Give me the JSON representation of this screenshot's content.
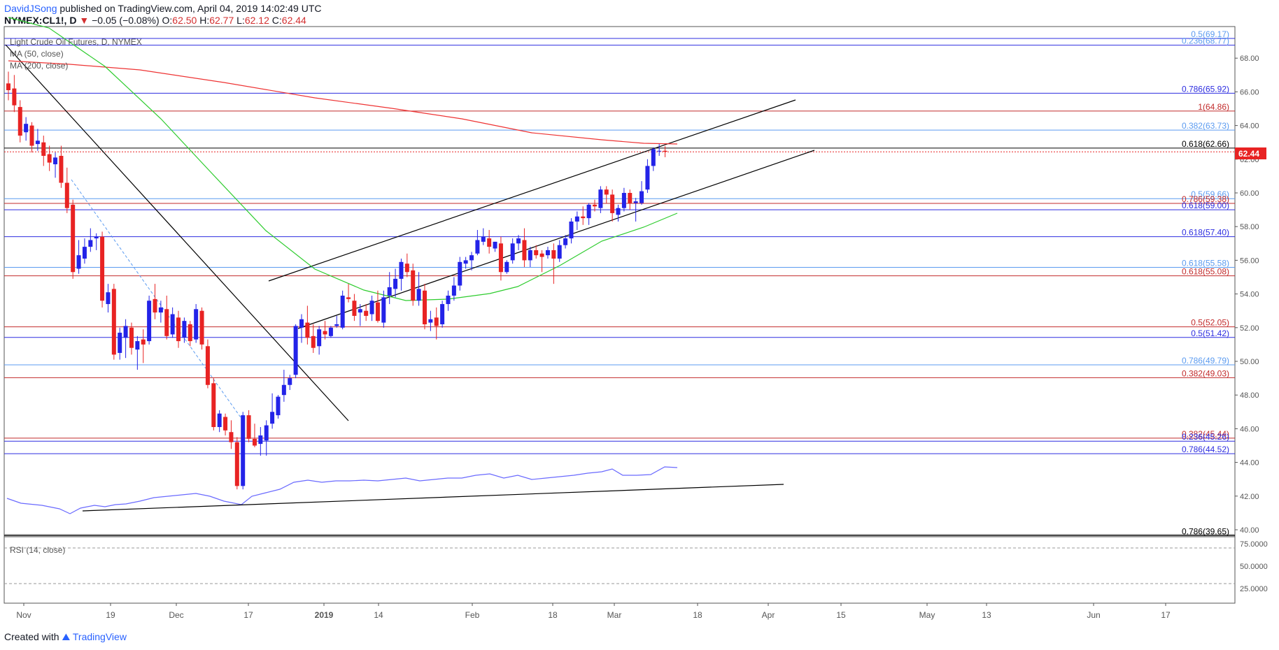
{
  "header": {
    "author": "DavidJSong",
    "published": "published on TradingView.com, April 04, 2019 14:02:49 UTC",
    "symbol": "NYMEX:CL1!, D",
    "change_arrow": "▼",
    "change": "−0.05 (−0.08%)",
    "ohlc": {
      "o_label": "O:",
      "o": "62.50",
      "h_label": "H:",
      "h": "62.77",
      "l_label": "L:",
      "l": "62.12",
      "c_label": "C:",
      "c": "62.44"
    }
  },
  "legend": {
    "title": "Light Crude Oil Futures, D, NYMEX",
    "ma50": "MA (50, close)",
    "ma200": "MA (200, close)",
    "rsi": "RSI (14, close)"
  },
  "price_badge": "62.44",
  "footer": {
    "created": "Created with",
    "brand": "TradingView"
  },
  "colors": {
    "up": "#2323e8",
    "down": "#e82323",
    "ma50": "#2ecc2e",
    "ma200": "#ee3333",
    "fib_blue": "#2d2de0",
    "fib_light": "#5b9bf0",
    "fib_red": "#c22b2b",
    "rsi": "#6a6aff",
    "trend": "#000000"
  },
  "chart_data": {
    "type": "candlestick",
    "price_axis": {
      "min": 39,
      "max": 69.5,
      "ticks": [
        "40.00",
        "42.00",
        "44.00",
        "46.00",
        "48.00",
        "50.00",
        "52.00",
        "54.00",
        "56.00",
        "58.00",
        "60.00",
        "62.00",
        "64.00",
        "66.00",
        "68.00"
      ]
    },
    "time_axis": {
      "labels": [
        "Nov",
        "19",
        "Dec",
        "17",
        "2019",
        "14",
        "Feb",
        "18",
        "Mar",
        "18",
        "Apr",
        "15",
        "May",
        "13",
        "Jun",
        "17"
      ]
    },
    "fib_levels": [
      {
        "label": "0.5(69.17)",
        "value": 69.17,
        "color": "fib_blue",
        "label_color": "fib_light"
      },
      {
        "label": "0.236(68.77)",
        "value": 68.77,
        "color": "fib_blue",
        "label_color": "fib_light"
      },
      {
        "label": "0.786(65.92)",
        "value": 65.92,
        "color": "fib_blue",
        "label_color": "fib_blue"
      },
      {
        "label": "1(64.86)",
        "value": 64.86,
        "color": "fib_red",
        "label_color": "fib_red"
      },
      {
        "label": "0.382(63.73)",
        "value": 63.73,
        "color": "fib_light",
        "label_color": "fib_light"
      },
      {
        "label": "0.618(62.66)",
        "value": 62.66,
        "color": "trend",
        "label_color": "trend"
      },
      {
        "label": "0.5(59.66)",
        "value": 59.66,
        "color": "fib_light",
        "label_color": "fib_light"
      },
      {
        "label": "0.786(59.38)",
        "value": 59.38,
        "color": "fib_red",
        "label_color": "fib_red"
      },
      {
        "label": "0.618(59.00)",
        "value": 59.0,
        "color": "fib_blue",
        "label_color": "fib_blue"
      },
      {
        "label": "0.618(57.40)",
        "value": 57.4,
        "color": "fib_blue",
        "label_color": "fib_blue"
      },
      {
        "label": "0.618(55.58)",
        "value": 55.58,
        "color": "fib_light",
        "label_color": "fib_light"
      },
      {
        "label": "0.618(55.08)",
        "value": 55.08,
        "color": "fib_red",
        "label_color": "fib_red"
      },
      {
        "label": "0.5(52.05)",
        "value": 52.05,
        "color": "fib_red",
        "label_color": "fib_red"
      },
      {
        "label": "0.5(51.42)",
        "value": 51.42,
        "color": "fib_blue",
        "label_color": "fib_blue"
      },
      {
        "label": "0.786(49.79)",
        "value": 49.79,
        "color": "fib_light",
        "label_color": "fib_light"
      },
      {
        "label": "0.382(49.03)",
        "value": 49.03,
        "color": "fib_red",
        "label_color": "fib_red"
      },
      {
        "label": "0.382(45.44)",
        "value": 45.44,
        "color": "fib_red",
        "label_color": "fib_red"
      },
      {
        "label": "0.236(45.26)",
        "value": 45.26,
        "color": "fib_blue",
        "label_color": "fib_blue"
      },
      {
        "label": "0.786(44.52)",
        "value": 44.52,
        "color": "fib_blue",
        "label_color": "fib_blue"
      },
      {
        "label": "0.786(39.65)",
        "value": 39.65,
        "color": "trend",
        "label_color": "trend"
      }
    ],
    "last_price": 62.44,
    "candles": [
      [
        66.5,
        67.2,
        65.5,
        66.1
      ],
      [
        66.2,
        67.0,
        64.8,
        65.2
      ],
      [
        65.1,
        65.5,
        63.0,
        63.4
      ],
      [
        63.6,
        64.5,
        63.1,
        64.1
      ],
      [
        64.0,
        64.2,
        62.4,
        62.8
      ],
      [
        62.9,
        63.8,
        62.5,
        63.1
      ],
      [
        63.0,
        63.4,
        61.6,
        62.2
      ],
      [
        62.3,
        62.8,
        61.3,
        61.8
      ],
      [
        61.7,
        62.4,
        60.9,
        62.1
      ],
      [
        62.2,
        62.8,
        60.3,
        60.6
      ],
      [
        60.6,
        61.5,
        58.8,
        59.1
      ],
      [
        59.3,
        59.6,
        54.9,
        55.3
      ],
      [
        55.5,
        57.2,
        55.2,
        56.3
      ],
      [
        56.1,
        57.3,
        55.8,
        56.8
      ],
      [
        56.8,
        57.9,
        56.5,
        57.2
      ],
      [
        57.3,
        57.6,
        56.6,
        57.4
      ],
      [
        57.4,
        57.7,
        53.2,
        53.6
      ],
      [
        53.4,
        54.6,
        52.9,
        54.1
      ],
      [
        54.3,
        54.6,
        50.1,
        50.4
      ],
      [
        50.5,
        52.0,
        50.1,
        51.7
      ],
      [
        51.4,
        52.5,
        50.2,
        52.1
      ],
      [
        52.0,
        52.3,
        50.4,
        50.8
      ],
      [
        50.7,
        51.5,
        49.5,
        51.2
      ],
      [
        51.3,
        51.9,
        49.9,
        51.0
      ],
      [
        51.2,
        53.9,
        51.0,
        53.6
      ],
      [
        53.7,
        54.6,
        52.5,
        52.9
      ],
      [
        52.9,
        53.6,
        52.3,
        53.2
      ],
      [
        53.1,
        53.9,
        51.3,
        51.5
      ],
      [
        51.6,
        53.2,
        51.4,
        52.8
      ],
      [
        52.6,
        53.0,
        50.8,
        51.2
      ],
      [
        51.4,
        52.6,
        51.1,
        52.4
      ],
      [
        52.2,
        52.4,
        50.9,
        51.2
      ],
      [
        51.3,
        53.4,
        51.1,
        53.1
      ],
      [
        53.0,
        53.2,
        50.7,
        51.0
      ],
      [
        50.9,
        51.3,
        48.4,
        48.6
      ],
      [
        48.7,
        49.0,
        45.9,
        46.1
      ],
      [
        46.1,
        47.1,
        45.8,
        46.9
      ],
      [
        46.7,
        46.9,
        45.6,
        45.9
      ],
      [
        45.8,
        46.5,
        44.8,
        45.2
      ],
      [
        45.2,
        45.5,
        42.4,
        42.6
      ],
      [
        42.6,
        47.0,
        42.4,
        46.8
      ],
      [
        46.8,
        47.1,
        45.2,
        45.4
      ],
      [
        45.4,
        46.3,
        44.9,
        45.0
      ],
      [
        45.1,
        46.1,
        44.4,
        45.6
      ],
      [
        45.3,
        46.5,
        44.4,
        46.2
      ],
      [
        46.3,
        48.1,
        46.0,
        47.0
      ],
      [
        46.8,
        48.0,
        46.6,
        47.9
      ],
      [
        48.0,
        49.5,
        47.6,
        48.6
      ],
      [
        48.6,
        49.2,
        48.3,
        49.0
      ],
      [
        49.2,
        52.2,
        49.0,
        52.1
      ],
      [
        52.0,
        52.8,
        51.1,
        52.5
      ],
      [
        52.3,
        53.3,
        51.0,
        51.4
      ],
      [
        51.5,
        52.2,
        50.5,
        50.8
      ],
      [
        50.9,
        52.1,
        50.4,
        51.9
      ],
      [
        51.8,
        52.4,
        51.3,
        51.6
      ],
      [
        51.5,
        52.1,
        51.4,
        52.0
      ],
      [
        52.1,
        52.7,
        52.0,
        52.2
      ],
      [
        52.0,
        54.2,
        51.9,
        53.9
      ],
      [
        53.8,
        54.6,
        53.5,
        53.7
      ],
      [
        53.6,
        54.0,
        52.4,
        52.7
      ],
      [
        52.9,
        53.4,
        52.1,
        53.1
      ],
      [
        53.0,
        53.4,
        52.4,
        52.7
      ],
      [
        52.8,
        53.9,
        52.4,
        53.6
      ],
      [
        53.5,
        54.2,
        52.3,
        52.4
      ],
      [
        52.3,
        54.2,
        52.0,
        53.8
      ],
      [
        53.9,
        55.3,
        53.4,
        54.4
      ],
      [
        54.3,
        55.5,
        53.8,
        54.9
      ],
      [
        54.9,
        56.1,
        54.2,
        55.9
      ],
      [
        55.8,
        56.4,
        55.0,
        55.3
      ],
      [
        55.4,
        55.8,
        53.3,
        53.6
      ],
      [
        53.6,
        55.3,
        53.3,
        54.3
      ],
      [
        54.2,
        54.6,
        51.9,
        52.2
      ],
      [
        52.3,
        53.0,
        51.8,
        52.5
      ],
      [
        52.6,
        53.2,
        51.3,
        52.1
      ],
      [
        52.2,
        53.6,
        52.0,
        53.4
      ],
      [
        53.4,
        54.2,
        53.0,
        53.9
      ],
      [
        53.9,
        55.0,
        53.6,
        54.5
      ],
      [
        54.5,
        56.2,
        54.2,
        55.9
      ],
      [
        55.8,
        56.2,
        55.5,
        56.0
      ],
      [
        56.0,
        56.5,
        55.4,
        56.3
      ],
      [
        56.4,
        57.8,
        56.3,
        57.2
      ],
      [
        57.1,
        57.9,
        56.9,
        57.4
      ],
      [
        57.3,
        57.8,
        56.4,
        56.8
      ],
      [
        56.7,
        57.1,
        56.5,
        57.1
      ],
      [
        57.0,
        57.4,
        54.8,
        55.3
      ],
      [
        55.3,
        56.0,
        55.2,
        55.9
      ],
      [
        56.0,
        57.3,
        55.8,
        57.0
      ],
      [
        57.0,
        57.5,
        56.6,
        57.3
      ],
      [
        57.2,
        57.9,
        55.6,
        56.0
      ],
      [
        56.0,
        56.8,
        55.6,
        56.6
      ],
      [
        56.6,
        56.9,
        56.1,
        56.3
      ],
      [
        56.4,
        56.6,
        55.3,
        56.2
      ],
      [
        56.3,
        56.8,
        56.1,
        56.6
      ],
      [
        56.6,
        57.0,
        54.6,
        56.1
      ],
      [
        56.1,
        57.2,
        55.9,
        56.9
      ],
      [
        56.9,
        57.5,
        56.7,
        57.3
      ],
      [
        57.3,
        58.5,
        57.0,
        58.3
      ],
      [
        58.3,
        58.9,
        57.8,
        58.6
      ],
      [
        58.6,
        59.2,
        58.1,
        58.5
      ],
      [
        58.5,
        59.4,
        58.1,
        59.3
      ],
      [
        59.3,
        59.6,
        58.9,
        59.2
      ],
      [
        59.1,
        60.4,
        58.8,
        60.2
      ],
      [
        60.2,
        60.4,
        59.4,
        59.9
      ],
      [
        59.9,
        60.2,
        58.3,
        58.8
      ],
      [
        58.7,
        59.3,
        58.3,
        59.1
      ],
      [
        59.1,
        60.3,
        58.9,
        60.0
      ],
      [
        60.0,
        60.2,
        59.0,
        59.4
      ],
      [
        59.4,
        59.7,
        58.3,
        59.5
      ],
      [
        59.4,
        60.7,
        59.3,
        60.1
      ],
      [
        60.2,
        62.0,
        60.0,
        61.6
      ],
      [
        61.6,
        62.7,
        61.3,
        62.6
      ],
      [
        62.5,
        62.9,
        62.2,
        62.5
      ],
      [
        62.5,
        62.77,
        62.12,
        62.44
      ]
    ],
    "candle_x0": 12,
    "candle_step": 8.38,
    "ma50": [
      [
        12,
        25
      ],
      [
        70,
        40
      ],
      [
        150,
        95
      ],
      [
        230,
        170
      ],
      [
        300,
        245
      ],
      [
        380,
        330
      ],
      [
        450,
        385
      ],
      [
        520,
        415
      ],
      [
        580,
        430
      ],
      [
        640,
        428
      ],
      [
        700,
        420
      ],
      [
        740,
        410
      ],
      [
        800,
        380
      ],
      [
        860,
        345
      ],
      [
        920,
        325
      ],
      [
        968,
        305
      ]
    ],
    "ma200": [
      [
        12,
        87
      ],
      [
        100,
        92
      ],
      [
        200,
        100
      ],
      [
        320,
        118
      ],
      [
        450,
        140
      ],
      [
        560,
        155
      ],
      [
        660,
        170
      ],
      [
        760,
        190
      ],
      [
        860,
        200
      ],
      [
        920,
        205
      ],
      [
        968,
        206
      ]
    ],
    "trendlines": [
      [
        [
          8,
          64
        ],
        [
          498,
          602
        ]
      ],
      [
        [
          384,
          402
        ],
        [
          1137,
          143
        ]
      ],
      [
        [
          426,
          470
        ],
        [
          1164,
          215
        ]
      ]
    ],
    "dashed_line": [
      [
        102,
        257
      ],
      [
        346,
        600
      ]
    ],
    "rsi": {
      "ticks": [
        "75.0000",
        "50.0000",
        "25.0000"
      ],
      "line": [
        [
          10,
          713
        ],
        [
          30,
          720
        ],
        [
          60,
          723
        ],
        [
          85,
          728
        ],
        [
          100,
          735
        ],
        [
          115,
          727
        ],
        [
          135,
          723
        ],
        [
          150,
          725
        ],
        [
          165,
          722
        ],
        [
          180,
          721
        ],
        [
          200,
          717
        ],
        [
          220,
          712
        ],
        [
          240,
          710
        ],
        [
          260,
          708
        ],
        [
          280,
          706
        ],
        [
          300,
          710
        ],
        [
          320,
          717
        ],
        [
          345,
          722
        ],
        [
          360,
          710
        ],
        [
          380,
          705
        ],
        [
          400,
          700
        ],
        [
          420,
          690
        ],
        [
          440,
          687
        ],
        [
          460,
          690
        ],
        [
          480,
          688
        ],
        [
          500,
          688
        ],
        [
          520,
          687
        ],
        [
          540,
          688
        ],
        [
          560,
          686
        ],
        [
          580,
          684
        ],
        [
          600,
          688
        ],
        [
          620,
          686
        ],
        [
          640,
          684
        ],
        [
          660,
          684
        ],
        [
          680,
          680
        ],
        [
          700,
          678
        ],
        [
          720,
          684
        ],
        [
          740,
          680
        ],
        [
          760,
          686
        ],
        [
          780,
          684
        ],
        [
          800,
          682
        ],
        [
          820,
          680
        ],
        [
          840,
          677
        ],
        [
          860,
          675
        ],
        [
          875,
          671
        ],
        [
          890,
          680
        ],
        [
          910,
          680
        ],
        [
          930,
          679
        ],
        [
          950,
          668
        ],
        [
          968,
          669
        ]
      ],
      "trend": [
        [
          118,
          731
        ],
        [
          1120,
          693
        ]
      ]
    }
  }
}
